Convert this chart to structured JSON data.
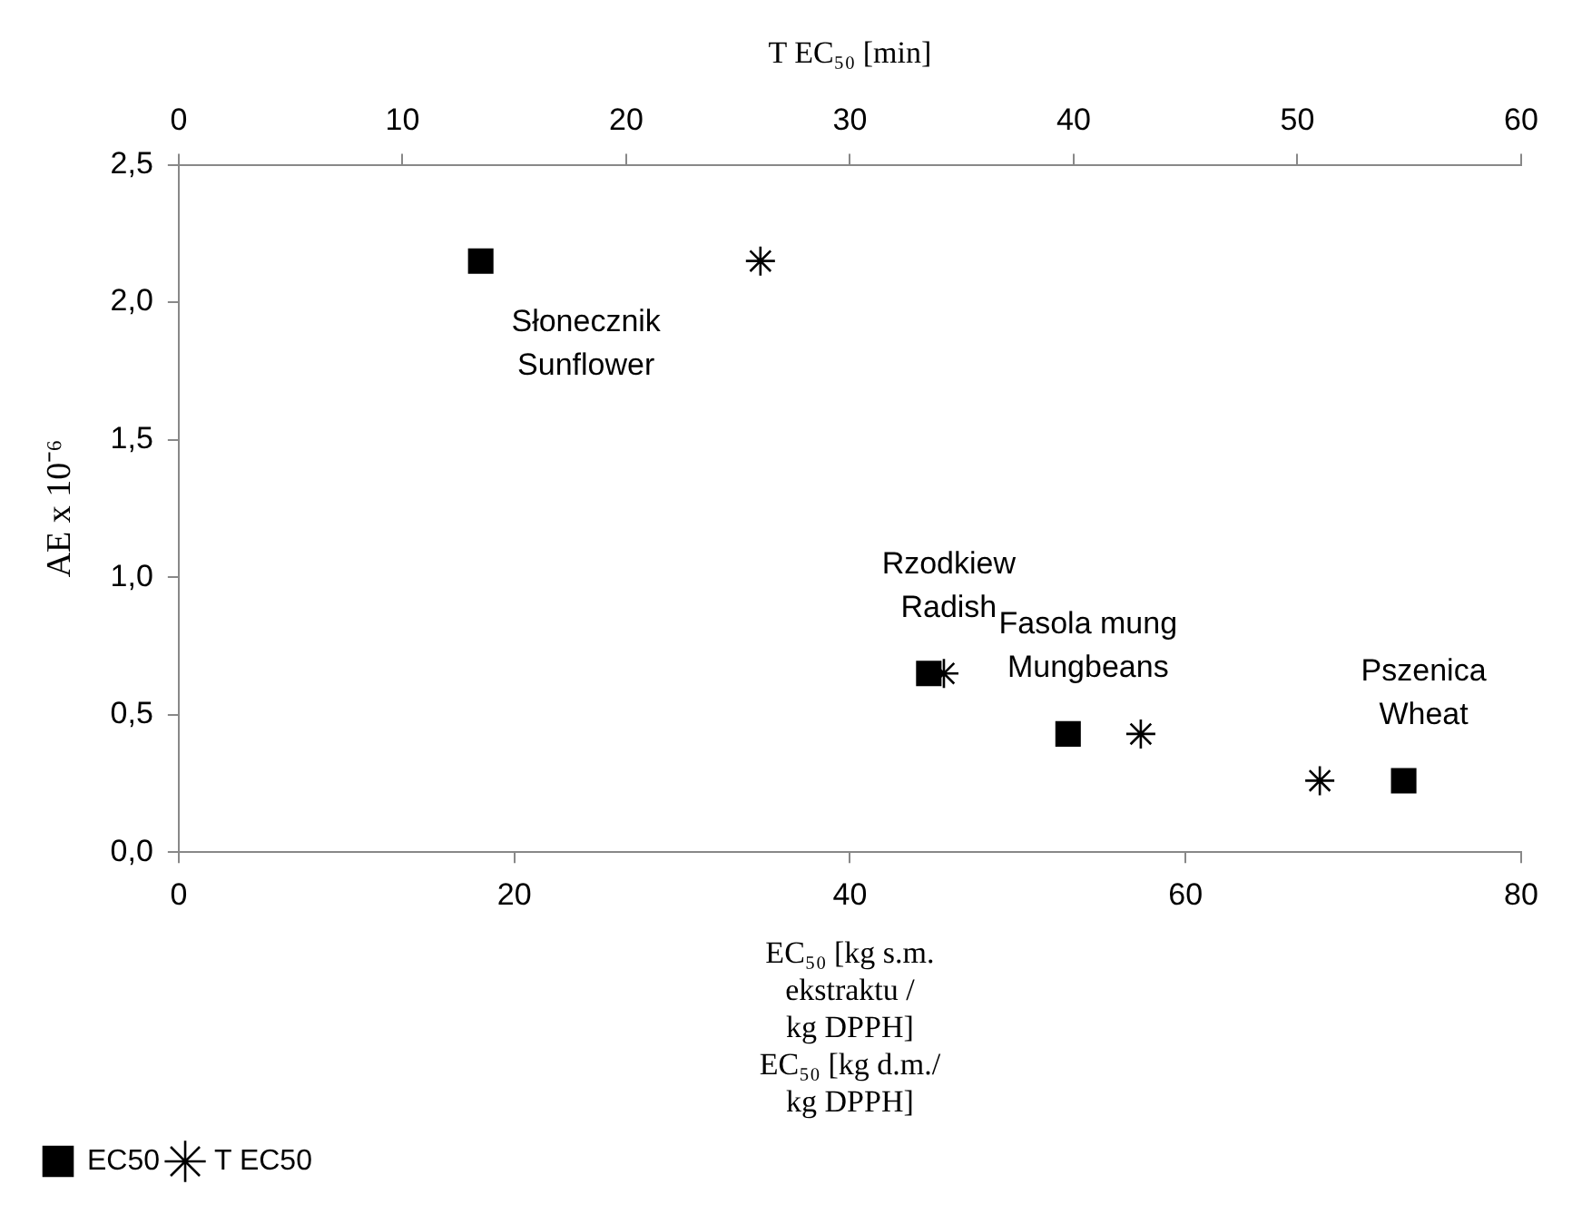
{
  "chart_data": {
    "type": "scatter",
    "x2label": "T EC₅₀ [min]",
    "ylabel": "AE x 10⁻⁶",
    "xlabel": "EC₅₀ [kg s.m.\nekstraktu /\nkg DPPH]\nEC₅₀ [kg d.m./\nkg DPPH]",
    "xlim": [
      0,
      80
    ],
    "xticks": [
      0,
      20,
      40,
      60,
      80
    ],
    "x2lim": [
      0,
      60
    ],
    "x2ticks": [
      0,
      10,
      20,
      30,
      40,
      50,
      60
    ],
    "ylim": [
      0,
      2.5
    ],
    "yticks": [
      {
        "value": 0,
        "label": "0,0"
      },
      {
        "value": 0.5,
        "label": "0,5"
      },
      {
        "value": 1,
        "label": "1,0"
      },
      {
        "value": 1.5,
        "label": "1,5"
      },
      {
        "value": 2,
        "label": "2,0"
      },
      {
        "value": 2.5,
        "label": "2,5"
      }
    ],
    "grid": false,
    "legend": "bottom left",
    "series": [
      {
        "name": "EC50",
        "color": "#000000",
        "marker": "square",
        "x": [
          18,
          44.7,
          53,
          73
        ],
        "values": [
          2.15,
          0.65,
          0.43,
          0.26
        ]
      },
      {
        "name": "T EC50",
        "color": "#000000",
        "marker": "cross",
        "axis": "x2",
        "x": [
          26,
          34.2,
          43,
          51
        ],
        "values": [
          2.15,
          0.65,
          0.43,
          0.26
        ]
      }
    ],
    "annotations": [
      {
        "text": "Słonecznik\nSunflower",
        "x": 18,
        "y": 2.15
      },
      {
        "text": "Rzodkiew\nRadish",
        "x": 44.7,
        "y": 0.65
      },
      {
        "text": "Fasola mung\nMungbeans",
        "x": 53,
        "y": 0.43
      },
      {
        "text": "Pszenica\nWheat",
        "x": 73,
        "y": 0.26
      }
    ]
  }
}
